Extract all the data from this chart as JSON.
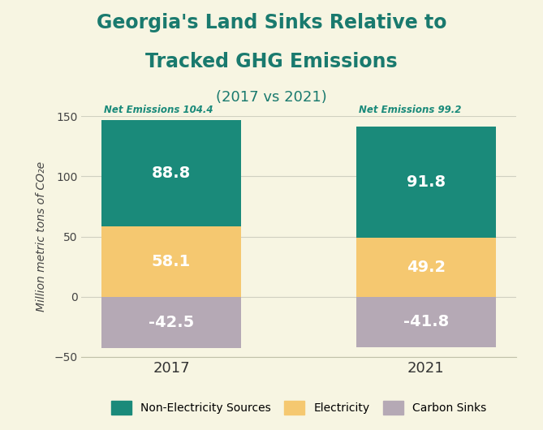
{
  "title_line1": "Georgia's Land Sinks Relative to",
  "title_line2": "Tracked GHG Emissions",
  "subtitle": "(2017 vs 2021)",
  "years": [
    "2017",
    "2021"
  ],
  "non_electricity": [
    88.8,
    91.8
  ],
  "electricity": [
    58.1,
    49.2
  ],
  "carbon_sinks": [
    -42.5,
    -41.8
  ],
  "net_emissions": [
    104.4,
    99.2
  ],
  "colors": {
    "non_electricity": "#1a8a7a",
    "electricity": "#f5c870",
    "carbon_sinks": "#b5a9b5",
    "background": "#f7f5e2",
    "title": "#1a7a6e",
    "subtitle": "#1a7a6e"
  },
  "ylim": [
    -50,
    150
  ],
  "yticks": [
    -50,
    0,
    50,
    100,
    150
  ],
  "ylabel": "Million metric tons of CO₂e",
  "legend_labels": [
    "Non-Electricity Sources",
    "Electricity",
    "Carbon Sinks"
  ],
  "bar_width": 0.55
}
